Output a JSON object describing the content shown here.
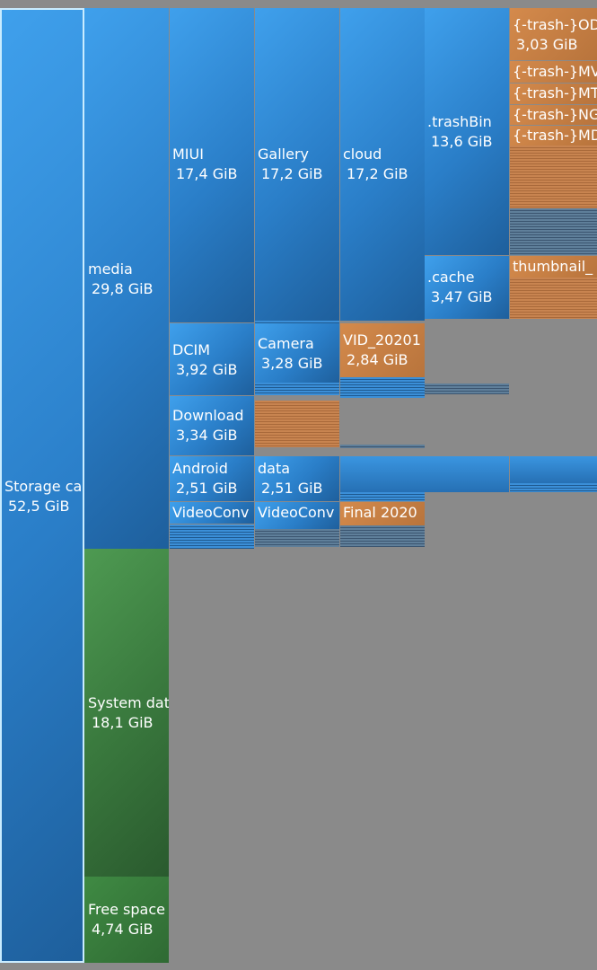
{
  "blocks": {
    "storage": {
      "name": "Storage ca",
      "size": "52,5 GiB"
    },
    "media": {
      "name": "media",
      "size": "29,8 GiB"
    },
    "system": {
      "name": "System dat",
      "size": "18,1 GiB"
    },
    "free": {
      "name": "Free space",
      "size": "4,74 GiB"
    },
    "miui": {
      "name": "MIUI",
      "size": "17,4 GiB"
    },
    "gallery": {
      "name": "Gallery",
      "size": "17,2 GiB"
    },
    "cloud": {
      "name": "cloud",
      "size": "17,2 GiB"
    },
    "trashbin": {
      "name": ".trashBin",
      "size": "13,6 GiB"
    },
    "trash1": {
      "name": "{-trash-}OD",
      "size": "3,03 GiB"
    },
    "trash2": {
      "name": "{-trash-}MV"
    },
    "trash3": {
      "name": "{-trash-}MT"
    },
    "trash4": {
      "name": "{-trash-}NG"
    },
    "trash5": {
      "name": "{-trash-}MD"
    },
    "cache": {
      "name": ".cache",
      "size": "3,47 GiB"
    },
    "thumbnail": {
      "name": "thumbnail_"
    },
    "dcim": {
      "name": "DCIM",
      "size": "3,92 GiB"
    },
    "camera": {
      "name": "Camera",
      "size": "3,28 GiB"
    },
    "vid": {
      "name": "VID_20201",
      "size": "2,84 GiB"
    },
    "download": {
      "name": "Download",
      "size": "3,34 GiB"
    },
    "android": {
      "name": "Android",
      "size": "2,51 GiB"
    },
    "data": {
      "name": "data",
      "size": "2,51 GiB"
    },
    "videoconv1": {
      "name": "VideoConv"
    },
    "videoconv2": {
      "name": "VideoConv"
    },
    "final": {
      "name": "Final 2020"
    }
  }
}
